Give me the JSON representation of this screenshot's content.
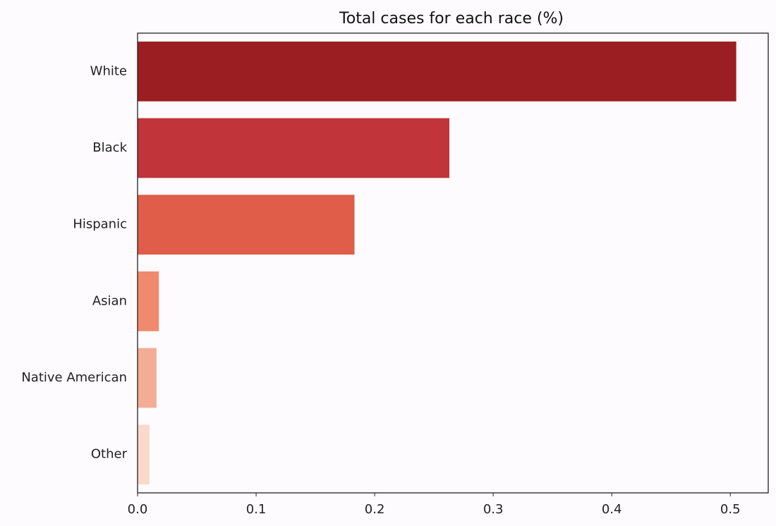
{
  "chart_data": {
    "type": "bar",
    "orientation": "horizontal",
    "title": "Total cases for each race (%)",
    "xlabel": "",
    "ylabel": "",
    "categories": [
      "White",
      "Black",
      "Hispanic",
      "Asian",
      "Native American",
      "Other"
    ],
    "values": [
      0.505,
      0.263,
      0.183,
      0.018,
      0.016,
      0.01
    ],
    "colors": [
      "#9b1e22",
      "#c0343a",
      "#e05d49",
      "#ef8a6c",
      "#f3ad95",
      "#f8d9cb"
    ],
    "xlim": [
      0,
      0.532
    ],
    "xticks": [
      0.0,
      0.1,
      0.2,
      0.3,
      0.4,
      0.5
    ],
    "xtick_labels": [
      "0.0",
      "0.1",
      "0.2",
      "0.3",
      "0.4",
      "0.5"
    ],
    "grid": false,
    "legend": null
  }
}
